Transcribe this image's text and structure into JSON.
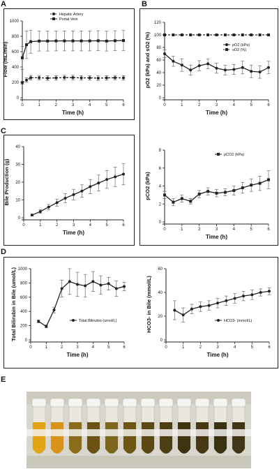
{
  "panels": {
    "a": "A",
    "b": "B",
    "c": "C",
    "d": "D",
    "e": "E"
  },
  "colors": {
    "line": "#222222",
    "bg": "#ffffff"
  },
  "chart_data": [
    {
      "id": "A",
      "type": "line",
      "xlabel": "Time (h)",
      "ylabel": "Flow (mL/min)",
      "xlim": [
        0,
        6
      ],
      "ylim": [
        0,
        1000
      ],
      "xticks": [
        0,
        1,
        2,
        3,
        4,
        5,
        6
      ],
      "yticks": [
        0,
        200,
        400,
        600,
        800,
        1000
      ],
      "legend_position": "top-right",
      "series": [
        {
          "name": "Hepatic Artery",
          "marker": "circle",
          "line": "dashed",
          "x": [
            0,
            0.25,
            0.5,
            1,
            1.5,
            2,
            2.5,
            3,
            3.5,
            4,
            4.5,
            5,
            5.5,
            6
          ],
          "y": [
            195,
            230,
            260,
            260,
            255,
            258,
            262,
            262,
            258,
            258,
            255,
            258,
            260,
            258
          ],
          "err": [
            20,
            30,
            30,
            30,
            30,
            30,
            30,
            30,
            30,
            30,
            30,
            30,
            30,
            30
          ]
        },
        {
          "name": "Portal Vein",
          "marker": "square",
          "line": "solid",
          "x": [
            0,
            0.25,
            0.5,
            1,
            1.5,
            2,
            2.5,
            3,
            3.5,
            4,
            4.5,
            5,
            5.5,
            6
          ],
          "y": [
            520,
            690,
            730,
            738,
            738,
            740,
            740,
            740,
            740,
            740,
            742,
            738,
            742,
            745
          ],
          "err": [
            150,
            180,
            150,
            130,
            130,
            130,
            130,
            130,
            130,
            130,
            130,
            130,
            130,
            130
          ]
        }
      ]
    },
    {
      "id": "B1",
      "type": "line",
      "xlabel": "Time (h)",
      "ylabel": "pO2 (kPa) and sO2 (%)",
      "xlim": [
        0,
        6
      ],
      "ylim": [
        0,
        120
      ],
      "xticks": [
        0,
        1,
        2,
        3,
        4,
        5,
        6
      ],
      "yticks": [
        0,
        20,
        40,
        60,
        80,
        100,
        120
      ],
      "legend_position": "right",
      "series": [
        {
          "name": "pO2 (kPa)",
          "marker": "circle",
          "line": "solid",
          "x": [
            0,
            0.5,
            1,
            1.5,
            2,
            2.5,
            3,
            3.5,
            4,
            4.5,
            5,
            5.5,
            6
          ],
          "y": [
            70,
            58,
            52,
            44,
            51,
            54,
            47,
            44,
            45,
            48,
            42,
            41,
            48
          ],
          "err": [
            6,
            8,
            10,
            8,
            8,
            8,
            8,
            8,
            8,
            10,
            10,
            10,
            10
          ]
        },
        {
          "name": "sO2 (%)",
          "marker": "square",
          "line": "dashed",
          "x": [
            0,
            0.5,
            1,
            1.5,
            2,
            2.5,
            3,
            3.5,
            4,
            4.5,
            5,
            5.5,
            6
          ],
          "y": [
            100,
            100,
            100,
            100,
            100,
            100,
            100,
            100,
            100,
            100,
            100,
            100,
            100
          ],
          "err": [
            0,
            0,
            0,
            0,
            0,
            0,
            0,
            0,
            0,
            0,
            0,
            0,
            0
          ]
        }
      ]
    },
    {
      "id": "B2",
      "type": "line",
      "xlabel": "Time (h)",
      "ylabel": "pCO2 (kPa)",
      "xlim": [
        0,
        6
      ],
      "ylim": [
        0,
        8
      ],
      "xticks": [
        0,
        1,
        2,
        3,
        4,
        5,
        6
      ],
      "yticks": [
        0,
        2,
        4,
        6,
        8
      ],
      "legend_position": "top-right",
      "series": [
        {
          "name": "pCO2 (kPa)",
          "marker": "square",
          "line": "solid",
          "x": [
            0,
            0.5,
            1,
            1.5,
            2,
            2.5,
            3,
            3.5,
            4,
            4.5,
            5,
            5.5,
            6
          ],
          "y": [
            3.0,
            2.2,
            2.6,
            2.3,
            3.1,
            3.4,
            3.2,
            3.3,
            3.5,
            3.8,
            4.1,
            4.3,
            4.7
          ],
          "err": [
            0.4,
            0.4,
            0.4,
            0.3,
            0.4,
            0.4,
            0.4,
            0.4,
            0.5,
            0.6,
            0.7,
            0.8,
            1.0
          ]
        }
      ]
    },
    {
      "id": "C",
      "type": "line",
      "xlabel": "Time (h)",
      "ylabel": "Bile Production (g)",
      "xlim": [
        0,
        6
      ],
      "ylim": [
        0,
        40
      ],
      "xticks": [
        0,
        1,
        2,
        3,
        4,
        5,
        6
      ],
      "yticks": [
        0,
        10,
        20,
        30,
        40
      ],
      "series": [
        {
          "name": "",
          "marker": "circle",
          "line": "solid",
          "x": [
            0.5,
            1,
            1.5,
            2,
            2.5,
            3,
            3.5,
            4,
            4.5,
            5,
            5.5,
            6
          ],
          "y": [
            1.5,
            3.5,
            6,
            8.5,
            11,
            13,
            15,
            17.5,
            19.5,
            21.5,
            23,
            24.5
          ],
          "err": [
            0.5,
            1,
            1.5,
            2,
            2.5,
            3,
            3.5,
            4,
            4.5,
            5,
            5.5,
            6
          ]
        }
      ]
    },
    {
      "id": "D1",
      "type": "line",
      "xlabel": "Time (h)",
      "ylabel": "Total Bilirubin in Bile (umol/L)",
      "xlim": [
        0,
        6
      ],
      "ylim": [
        0,
        1000
      ],
      "xticks": [
        0,
        1,
        2,
        3,
        4,
        5,
        6
      ],
      "yticks": [
        0,
        200,
        400,
        600,
        800,
        1000
      ],
      "legend_position": "lower-right",
      "series": [
        {
          "name": "Total Bilirubin (umol/L)",
          "marker": "circle",
          "line": "solid",
          "x": [
            0.5,
            1,
            1.5,
            2,
            2.5,
            3,
            3.5,
            4,
            4.5,
            5,
            5.5,
            6
          ],
          "y": [
            260,
            190,
            420,
            720,
            820,
            780,
            760,
            820,
            770,
            790,
            720,
            750
          ],
          "err": [
            20,
            20,
            40,
            120,
            180,
            170,
            160,
            140,
            130,
            90,
            110,
            60
          ]
        }
      ]
    },
    {
      "id": "D2",
      "type": "line",
      "xlabel": "Time (h)",
      "ylabel": "HCO3- in Bile (mmol/L)",
      "xlim": [
        0,
        6
      ],
      "ylim": [
        0,
        60
      ],
      "xticks": [
        0,
        1,
        2,
        3,
        4,
        5,
        6
      ],
      "yticks": [
        0,
        20,
        40,
        60
      ],
      "legend_position": "lower-right",
      "series": [
        {
          "name": "HCO3- (mmol/L)",
          "marker": "circle",
          "line": "solid",
          "x": [
            0.5,
            1,
            1.5,
            2,
            2.5,
            3,
            3.5,
            4,
            4.5,
            5,
            5.5,
            6
          ],
          "y": [
            25,
            21,
            26,
            28,
            29,
            31,
            33,
            35,
            37,
            38,
            40,
            41
          ],
          "err": [
            8,
            6,
            4,
            4,
            4,
            4,
            4,
            4,
            4,
            4,
            3,
            3
          ]
        }
      ]
    }
  ],
  "photo": {
    "description_colors": [
      "#e3a414",
      "#d9931a",
      "#8a6c1a",
      "#6b5112",
      "#7d661c",
      "#6d5613",
      "#5b4812",
      "#4d3e14",
      "#3f3412",
      "#463a16",
      "#3b3211",
      "#42361a"
    ]
  }
}
